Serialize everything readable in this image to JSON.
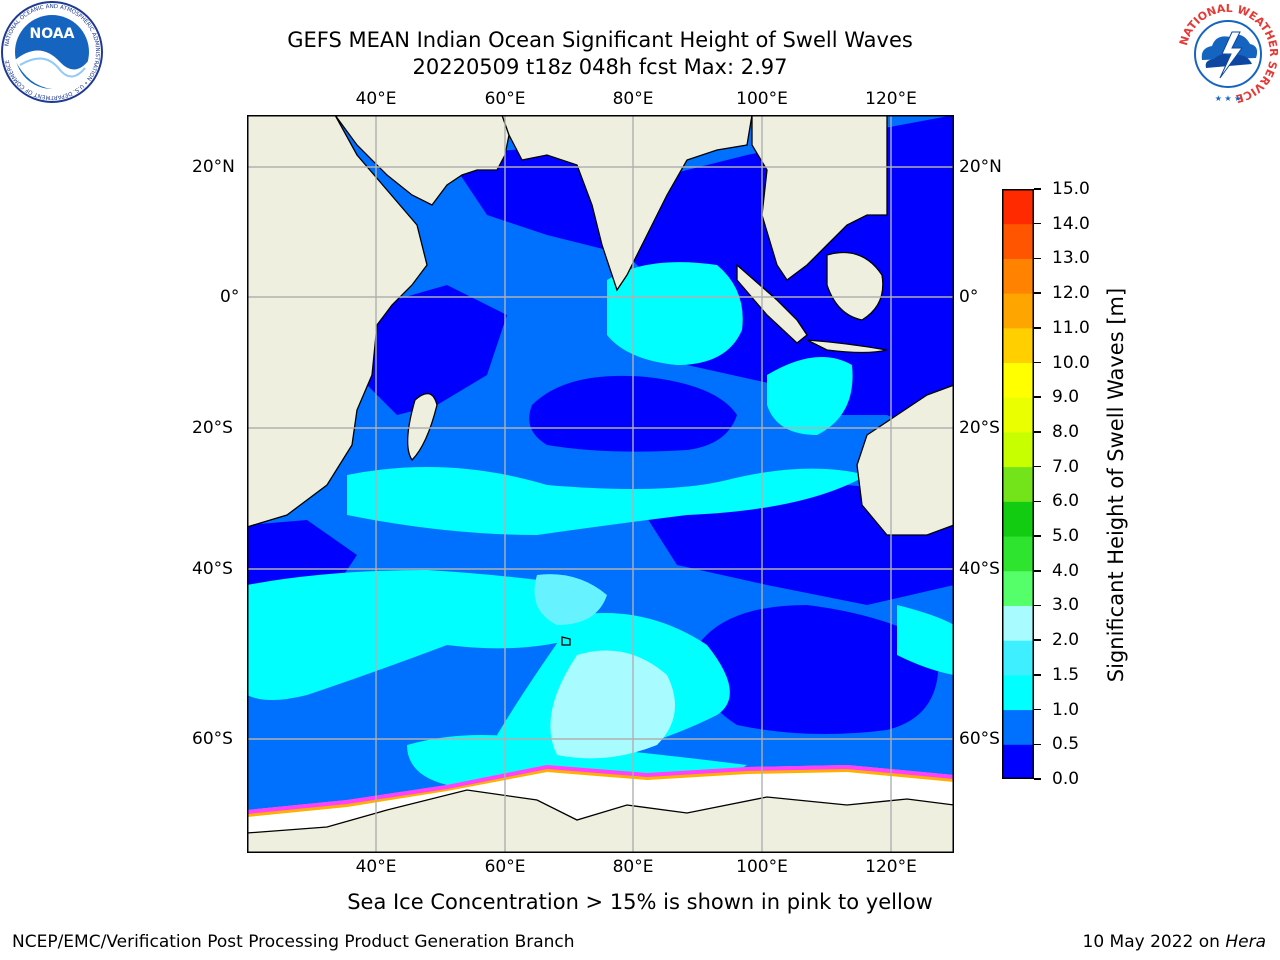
{
  "header": {
    "title_line1": "GEFS MEAN Indian Ocean Significant Height of Swell Waves",
    "title_line2": "20220509 t18z 048h fcst   Max: 2.97"
  },
  "logos": {
    "noaa_text": "NOAA",
    "noaa_ring": "NATIONAL OCEANIC AND ATMOSPHERIC ADMINISTRATION • U.S. DEPARTMENT OF COMMERCE",
    "nws_ring": "NATIONAL WEATHER SERVICE"
  },
  "map": {
    "lon_ticks": [
      "40°E",
      "60°E",
      "80°E",
      "100°E",
      "120°E"
    ],
    "lat_ticks": [
      "20°N",
      "0°",
      "20°S",
      "40°S",
      "60°S"
    ],
    "lon_range": [
      20,
      130
    ],
    "lat_range": [
      -70,
      27
    ]
  },
  "colorbar": {
    "label": "Significant Height of Swell Waves [m]",
    "ticks": [
      "0.0",
      "0.5",
      "1.0",
      "1.5",
      "2.0",
      "3.0",
      "4.0",
      "5.0",
      "6.0",
      "7.0",
      "8.0",
      "9.0",
      "10.0",
      "11.0",
      "12.0",
      "13.0",
      "14.0",
      "15.0"
    ],
    "colors": [
      "#0000ff",
      "#0070ff",
      "#00ffff",
      "#3ef0ff",
      "#a8fbff",
      "#55ff6a",
      "#2ee42e",
      "#11cc11",
      "#73e31a",
      "#c8ff00",
      "#eaff00",
      "#ffff00",
      "#ffcf00",
      "#ffa500",
      "#ff8200",
      "#ff5500",
      "#ff2a00"
    ]
  },
  "notes": {
    "sea_ice": "Sea Ice Concentration > 15% is shown in pink to yellow"
  },
  "footer": {
    "left": "NCEP/EMC/Verification Post Processing Product Generation Branch",
    "right_prefix": "10 May 2022 on ",
    "right_machine": "Hera"
  }
}
